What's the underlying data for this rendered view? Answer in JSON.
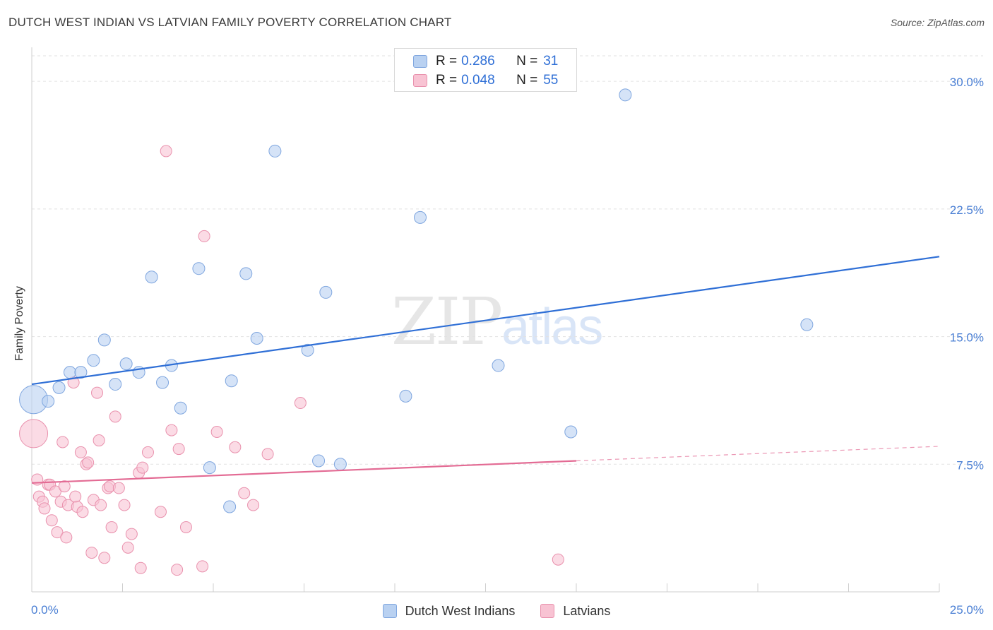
{
  "header": {
    "title": "DUTCH WEST INDIAN VS LATVIAN FAMILY POVERTY CORRELATION CHART",
    "source": "Source: ZipAtlas.com"
  },
  "watermark": {
    "part1": "ZIP",
    "part2": "atlas"
  },
  "legend": {
    "rows": [
      {
        "r_label": "R =",
        "r_value": "0.286",
        "n_label": "N =",
        "n_value": "31"
      },
      {
        "r_label": "R =",
        "r_value": "0.048",
        "n_label": "N =",
        "n_value": "55"
      }
    ]
  },
  "bottom_legend": {
    "series1": "Dutch West Indians",
    "series2": "Latvians"
  },
  "chart_data": {
    "type": "scatter",
    "title": "DUTCH WEST INDIAN VS LATVIAN FAMILY POVERTY CORRELATION CHART",
    "xlabel": "",
    "ylabel": "Family Poverty",
    "xlim": [
      0,
      25
    ],
    "ylim": [
      0,
      31.5
    ],
    "x_tick_labels": [
      {
        "value": 0,
        "label": "0.0%"
      },
      {
        "value": 25,
        "label": "25.0%"
      }
    ],
    "y_tick_labels": [
      {
        "value": 7.5,
        "label": "7.5%"
      },
      {
        "value": 15,
        "label": "15.0%"
      },
      {
        "value": 22.5,
        "label": "22.5%"
      },
      {
        "value": 30,
        "label": "30.0%"
      }
    ],
    "colors": {
      "blue_fill": "#b9d1f1",
      "blue_stroke": "#7fa6df",
      "blue_line": "#2f6fd6",
      "pink_fill": "#f8c3d3",
      "pink_stroke": "#e991ad",
      "pink_line": "#e36b94",
      "tick_label": "#4a7fd4",
      "grid": "#e2e2e2"
    },
    "series": [
      {
        "name": "Dutch West Indians",
        "color": "#7fa6df",
        "trendline": {
          "x0": 0,
          "y0": 12.2,
          "x1": 25,
          "y1": 19.7
        },
        "points": [
          [
            0.05,
            11.3
          ],
          [
            0.45,
            11.2
          ],
          [
            0.75,
            12.0
          ],
          [
            1.05,
            12.9
          ],
          [
            1.35,
            12.9
          ],
          [
            1.7,
            13.6
          ],
          [
            2.0,
            14.8
          ],
          [
            2.3,
            12.2
          ],
          [
            2.6,
            13.4
          ],
          [
            2.95,
            12.9
          ],
          [
            3.3,
            18.5
          ],
          [
            3.6,
            12.3
          ],
          [
            3.85,
            13.3
          ],
          [
            4.1,
            10.8
          ],
          [
            4.6,
            19.0
          ],
          [
            4.9,
            7.3
          ],
          [
            5.45,
            5.0
          ],
          [
            5.5,
            12.4
          ],
          [
            5.9,
            18.7
          ],
          [
            6.2,
            14.9
          ],
          [
            6.7,
            25.9
          ],
          [
            7.6,
            14.2
          ],
          [
            7.9,
            7.7
          ],
          [
            8.1,
            17.6
          ],
          [
            8.5,
            7.5
          ],
          [
            10.3,
            11.5
          ],
          [
            10.7,
            22.0
          ],
          [
            12.85,
            13.3
          ],
          [
            14.85,
            9.4
          ],
          [
            16.35,
            29.2
          ],
          [
            21.35,
            15.7
          ]
        ]
      },
      {
        "name": "Latvians",
        "color": "#e991ad",
        "trendline": {
          "x0": 0,
          "y0": 6.4,
          "x1": 15,
          "y1": 7.7,
          "dashed_to_x": 25,
          "dashed_to_y": 8.55
        },
        "points": [
          [
            0.05,
            9.3
          ],
          [
            0.15,
            6.6
          ],
          [
            0.2,
            5.6
          ],
          [
            0.3,
            5.3
          ],
          [
            0.35,
            4.9
          ],
          [
            0.45,
            6.3
          ],
          [
            0.5,
            6.3
          ],
          [
            0.55,
            4.2
          ],
          [
            0.65,
            5.9
          ],
          [
            0.7,
            3.5
          ],
          [
            0.8,
            5.3
          ],
          [
            0.85,
            8.8
          ],
          [
            0.9,
            6.2
          ],
          [
            0.95,
            3.2
          ],
          [
            1.0,
            5.1
          ],
          [
            1.15,
            12.3
          ],
          [
            1.2,
            5.6
          ],
          [
            1.25,
            5.0
          ],
          [
            1.35,
            8.2
          ],
          [
            1.4,
            4.7
          ],
          [
            1.5,
            7.5
          ],
          [
            1.55,
            7.6
          ],
          [
            1.65,
            2.3
          ],
          [
            1.7,
            5.4
          ],
          [
            1.8,
            11.7
          ],
          [
            1.85,
            8.9
          ],
          [
            1.9,
            5.1
          ],
          [
            2.0,
            2.0
          ],
          [
            2.1,
            6.1
          ],
          [
            2.15,
            6.2
          ],
          [
            2.2,
            3.8
          ],
          [
            2.3,
            10.3
          ],
          [
            2.4,
            6.1
          ],
          [
            2.55,
            5.1
          ],
          [
            2.65,
            2.6
          ],
          [
            2.75,
            3.4
          ],
          [
            2.95,
            7.0
          ],
          [
            3.0,
            1.4
          ],
          [
            3.05,
            7.3
          ],
          [
            3.2,
            8.2
          ],
          [
            3.55,
            4.7
          ],
          [
            3.7,
            25.9
          ],
          [
            3.85,
            9.5
          ],
          [
            4.0,
            1.3
          ],
          [
            4.05,
            8.4
          ],
          [
            4.25,
            3.8
          ],
          [
            4.7,
            1.5
          ],
          [
            4.75,
            20.9
          ],
          [
            5.1,
            9.4
          ],
          [
            5.6,
            8.5
          ],
          [
            5.85,
            5.8
          ],
          [
            6.1,
            5.1
          ],
          [
            6.5,
            8.1
          ],
          [
            7.4,
            11.1
          ],
          [
            14.5,
            1.9
          ]
        ]
      }
    ]
  }
}
